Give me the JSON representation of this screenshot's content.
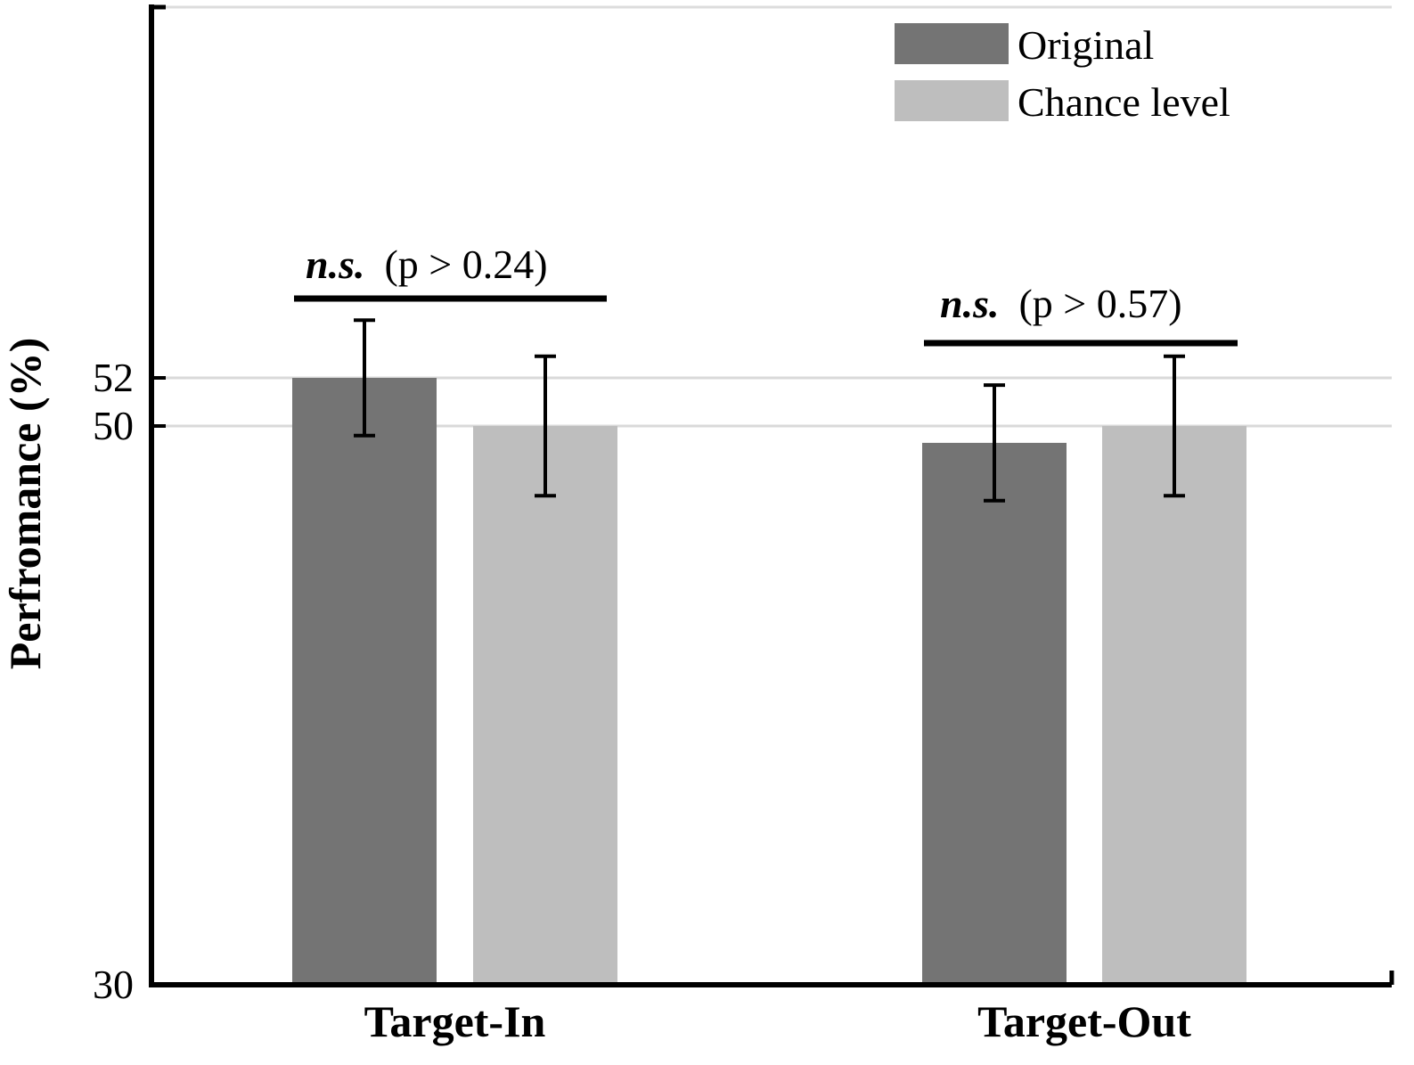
{
  "chart_data": {
    "type": "bar",
    "ylabel": "Perfromance (%)",
    "ylim": [
      30,
      58
    ],
    "yticks": [
      30,
      50,
      52
    ],
    "grid_lines_at": [
      50,
      52
    ],
    "categories": [
      "Target-In",
      "Target-Out"
    ],
    "series": [
      {
        "name": "Original",
        "color": "#747474",
        "values": [
          52.0,
          49.3
        ],
        "error": [
          2.4,
          2.4
        ]
      },
      {
        "name": "Chance level",
        "color": "#bebebe",
        "values": [
          50.0,
          50.0
        ],
        "error": [
          2.9,
          2.9
        ]
      }
    ],
    "legend": {
      "position": "top-right"
    },
    "annotations": [
      {
        "category": "Target-In",
        "label": "n.s.",
        "detail": "(p > 0.24)"
      },
      {
        "category": "Target-Out",
        "label": "n.s.",
        "detail": "(p > 0.57)"
      }
    ]
  }
}
